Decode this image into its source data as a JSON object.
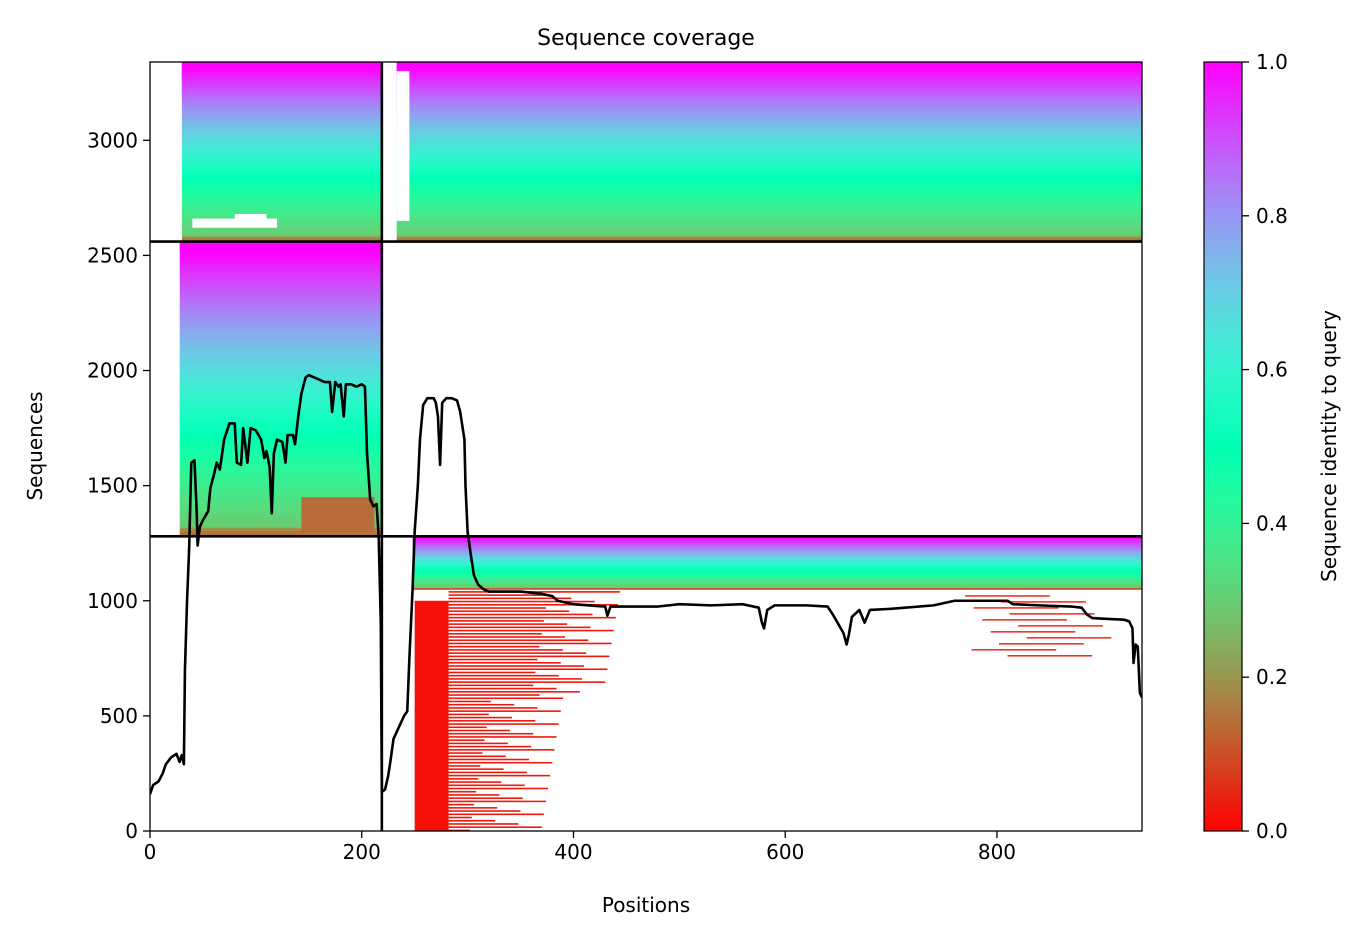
{
  "chart_data": {
    "type": "heatmap",
    "title": "Sequence coverage",
    "xlabel": "Positions",
    "ylabel": "Sequences",
    "xlim": [
      0,
      937
    ],
    "ylim": [
      0,
      3340
    ],
    "xticks": [
      0,
      200,
      400,
      600,
      800
    ],
    "yticks": [
      0,
      500,
      1000,
      1500,
      2000,
      2500,
      3000
    ],
    "colorbar": {
      "label": "Sequence identity to query",
      "range": [
        0,
        1
      ],
      "ticks": [
        0.0,
        0.2,
        0.4,
        0.6,
        0.8,
        1.0
      ],
      "tick_labels": [
        "0.0",
        "0.2",
        "0.4",
        "0.6",
        "0.8",
        "1.0"
      ],
      "colormap": "rainbow_r",
      "stops": [
        "#ff0000",
        "#ff8040",
        "#c0e060",
        "#80ffb0",
        "#30d8e0",
        "#1090f0",
        "#8000ff"
      ]
    },
    "chain_boundary_positions": [
      219
    ],
    "chain_boundary_sequences": [
      1280,
      2560
    ],
    "coverage_line_color": "#000000",
    "coverage_line": [
      [
        0,
        160
      ],
      [
        3,
        200
      ],
      [
        8,
        215
      ],
      [
        12,
        250
      ],
      [
        15,
        290
      ],
      [
        20,
        320
      ],
      [
        25,
        335
      ],
      [
        28,
        300
      ],
      [
        30,
        330
      ],
      [
        32,
        290
      ],
      [
        33,
        700
      ],
      [
        35,
        1000
      ],
      [
        37,
        1230
      ],
      [
        39,
        1600
      ],
      [
        42,
        1610
      ],
      [
        44,
        1400
      ],
      [
        45,
        1240
      ],
      [
        47,
        1320
      ],
      [
        50,
        1350
      ],
      [
        55,
        1390
      ],
      [
        57,
        1490
      ],
      [
        60,
        1540
      ],
      [
        63,
        1600
      ],
      [
        66,
        1570
      ],
      [
        70,
        1700
      ],
      [
        75,
        1770
      ],
      [
        80,
        1770
      ],
      [
        82,
        1600
      ],
      [
        86,
        1590
      ],
      [
        88,
        1750
      ],
      [
        92,
        1600
      ],
      [
        95,
        1750
      ],
      [
        100,
        1740
      ],
      [
        105,
        1700
      ],
      [
        108,
        1620
      ],
      [
        110,
        1650
      ],
      [
        113,
        1580
      ],
      [
        115,
        1380
      ],
      [
        117,
        1640
      ],
      [
        120,
        1700
      ],
      [
        125,
        1690
      ],
      [
        128,
        1600
      ],
      [
        130,
        1720
      ],
      [
        135,
        1720
      ],
      [
        137,
        1680
      ],
      [
        140,
        1800
      ],
      [
        143,
        1900
      ],
      [
        147,
        1970
      ],
      [
        150,
        1980
      ],
      [
        155,
        1970
      ],
      [
        160,
        1960
      ],
      [
        165,
        1950
      ],
      [
        170,
        1950
      ],
      [
        172,
        1820
      ],
      [
        175,
        1950
      ],
      [
        178,
        1930
      ],
      [
        180,
        1940
      ],
      [
        183,
        1800
      ],
      [
        185,
        1940
      ],
      [
        190,
        1940
      ],
      [
        195,
        1930
      ],
      [
        200,
        1940
      ],
      [
        203,
        1930
      ],
      [
        205,
        1640
      ],
      [
        208,
        1440
      ],
      [
        211,
        1410
      ],
      [
        214,
        1420
      ],
      [
        216,
        1280
      ],
      [
        218,
        900
      ],
      [
        219,
        170
      ],
      [
        222,
        180
      ],
      [
        225,
        240
      ],
      [
        227,
        300
      ],
      [
        230,
        400
      ],
      [
        235,
        450
      ],
      [
        240,
        500
      ],
      [
        243,
        520
      ],
      [
        245,
        750
      ],
      [
        248,
        1050
      ],
      [
        250,
        1300
      ],
      [
        253,
        1500
      ],
      [
        255,
        1700
      ],
      [
        258,
        1850
      ],
      [
        262,
        1880
      ],
      [
        268,
        1880
      ],
      [
        270,
        1860
      ],
      [
        272,
        1800
      ],
      [
        274,
        1590
      ],
      [
        276,
        1860
      ],
      [
        280,
        1880
      ],
      [
        285,
        1880
      ],
      [
        290,
        1870
      ],
      [
        293,
        1820
      ],
      [
        297,
        1700
      ],
      [
        298,
        1500
      ],
      [
        300,
        1300
      ],
      [
        303,
        1200
      ],
      [
        306,
        1110
      ],
      [
        310,
        1070
      ],
      [
        315,
        1050
      ],
      [
        320,
        1040
      ],
      [
        330,
        1040
      ],
      [
        350,
        1040
      ],
      [
        370,
        1030
      ],
      [
        380,
        1020
      ],
      [
        385,
        1000
      ],
      [
        400,
        985
      ],
      [
        420,
        978
      ],
      [
        430,
        975
      ],
      [
        432,
        935
      ],
      [
        435,
        975
      ],
      [
        460,
        975
      ],
      [
        480,
        975
      ],
      [
        500,
        985
      ],
      [
        530,
        980
      ],
      [
        560,
        985
      ],
      [
        575,
        970
      ],
      [
        578,
        905
      ],
      [
        580,
        880
      ],
      [
        583,
        960
      ],
      [
        590,
        980
      ],
      [
        620,
        980
      ],
      [
        640,
        975
      ],
      [
        645,
        940
      ],
      [
        650,
        900
      ],
      [
        655,
        860
      ],
      [
        658,
        810
      ],
      [
        660,
        850
      ],
      [
        663,
        930
      ],
      [
        670,
        960
      ],
      [
        675,
        905
      ],
      [
        680,
        960
      ],
      [
        700,
        965
      ],
      [
        740,
        980
      ],
      [
        760,
        1000
      ],
      [
        800,
        1000
      ],
      [
        810,
        1000
      ],
      [
        815,
        985
      ],
      [
        840,
        980
      ],
      [
        870,
        975
      ],
      [
        880,
        970
      ],
      [
        885,
        940
      ],
      [
        890,
        925
      ],
      [
        900,
        922
      ],
      [
        920,
        918
      ],
      [
        925,
        910
      ],
      [
        928,
        880
      ],
      [
        929,
        730
      ],
      [
        931,
        810
      ],
      [
        933,
        800
      ],
      [
        935,
        600
      ],
      [
        937,
        580
      ]
    ]
  }
}
